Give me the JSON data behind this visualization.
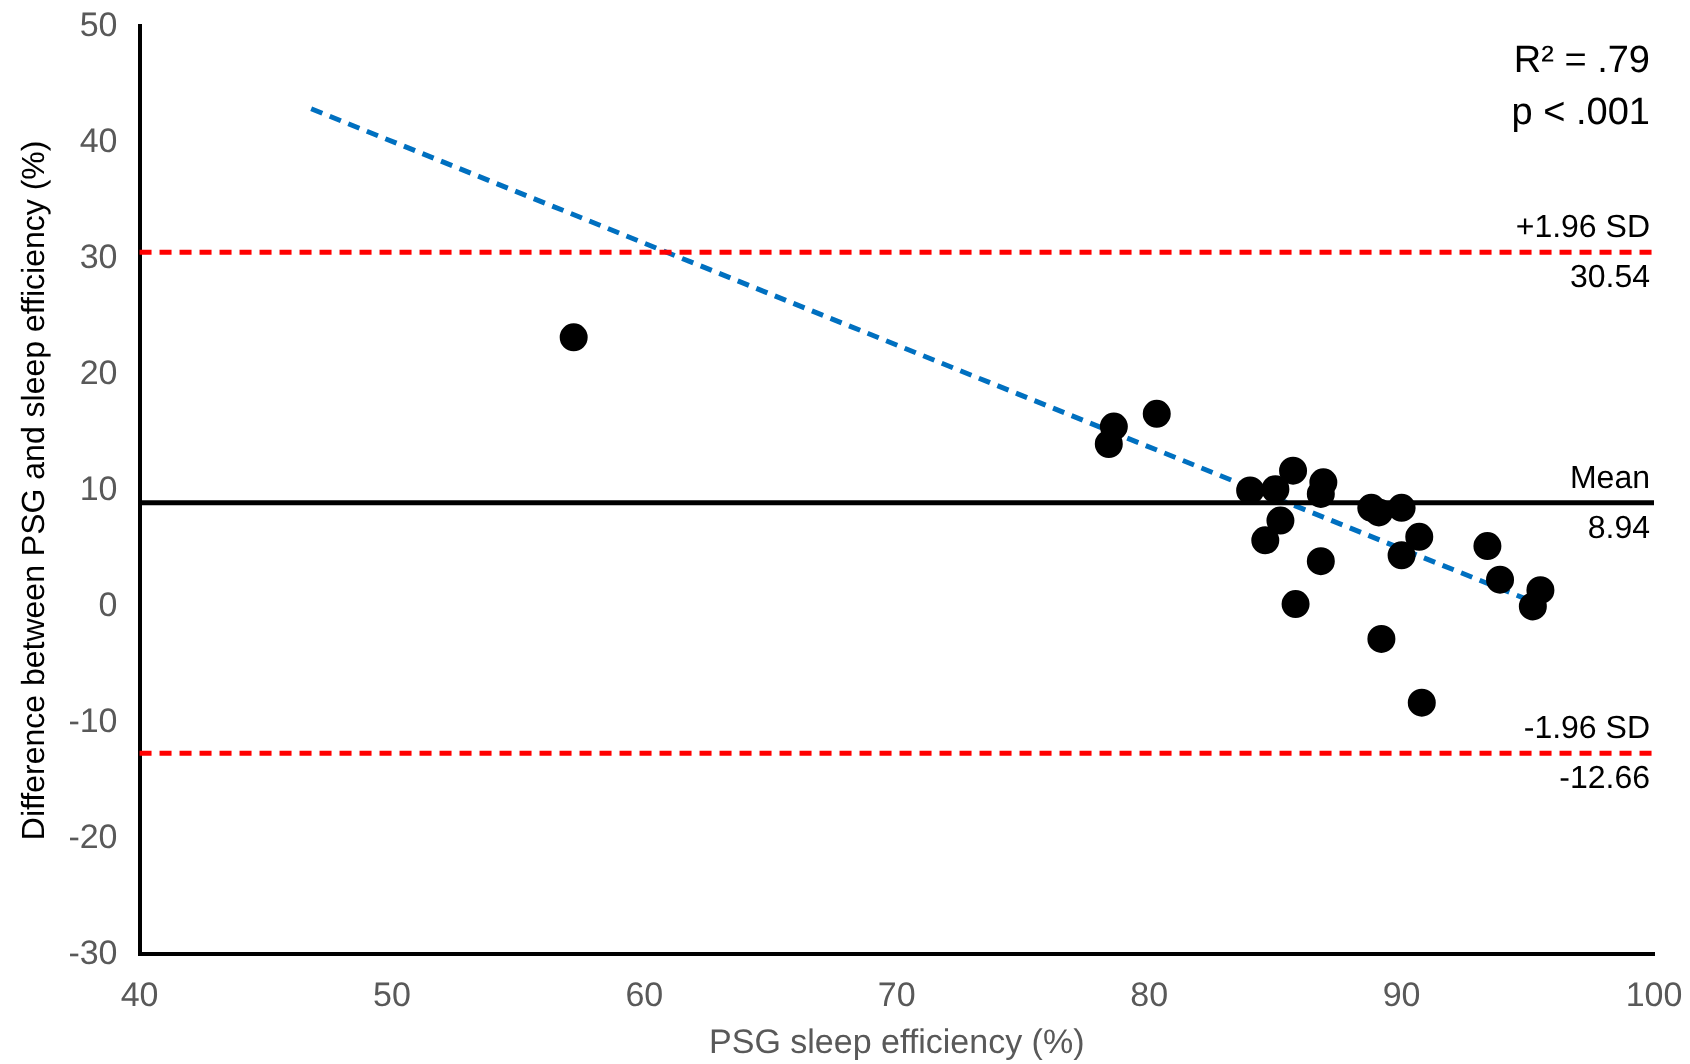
{
  "chart_data": {
    "type": "scatter",
    "xlabel": "PSG sleep efficiency (%)",
    "ylabel": "Difference between PSG and sleep efficiency (%)",
    "xlim": [
      40,
      100
    ],
    "xticks": [
      40,
      50,
      60,
      70,
      80,
      90,
      100
    ],
    "ylim": [
      -30,
      50
    ],
    "yticks": [
      -30,
      -20,
      -10,
      0,
      10,
      20,
      30,
      40,
      50
    ],
    "grid": false,
    "legend": false,
    "marker": "circle",
    "series": [
      {
        "color": "#000000",
        "x": [
          57.2,
          78.6,
          78.4,
          80.3,
          84.0,
          85.0,
          85.7,
          86.9,
          86.8,
          85.2,
          84.6,
          86.8,
          85.8,
          88.8,
          89.1,
          90.0,
          90.7,
          90.0,
          89.2,
          90.8,
          93.4,
          93.9,
          95.5,
          95.2
        ],
        "values": [
          23.2,
          15.5,
          14.0,
          16.6,
          10.0,
          10.1,
          11.7,
          10.7,
          9.7,
          7.4,
          5.7,
          3.9,
          0.2,
          8.5,
          8.1,
          8.5,
          6.0,
          4.4,
          -2.8,
          -8.3,
          5.2,
          2.3,
          1.4,
          0.0
        ]
      },
      {
        "type": "line",
        "color": "#0070c0",
        "line_style": "dashed",
        "marker": "none",
        "x": [
          46.8,
          95.2
        ],
        "values": [
          42.9,
          0.4
        ]
      }
    ],
    "ref_lines": [
      {
        "axis": "y",
        "value": 30.54,
        "label": "+1.96 SD",
        "color": "#ff0000",
        "line_style": "dashed"
      },
      {
        "axis": "y",
        "value": 8.94,
        "label": "Mean",
        "color": "#000000",
        "line_style": "solid"
      },
      {
        "axis": "y",
        "value": -12.66,
        "label": "-1.96 SD",
        "color": "#ff0000",
        "line_style": "dashed"
      }
    ],
    "annotations": [
      "R² = .79",
      "p < .001",
      {
        "text": "30.54",
        "y": 30.54
      },
      {
        "text": "8.94",
        "y": 8.94
      },
      {
        "text": "-12.66",
        "y": -12.66
      }
    ]
  }
}
